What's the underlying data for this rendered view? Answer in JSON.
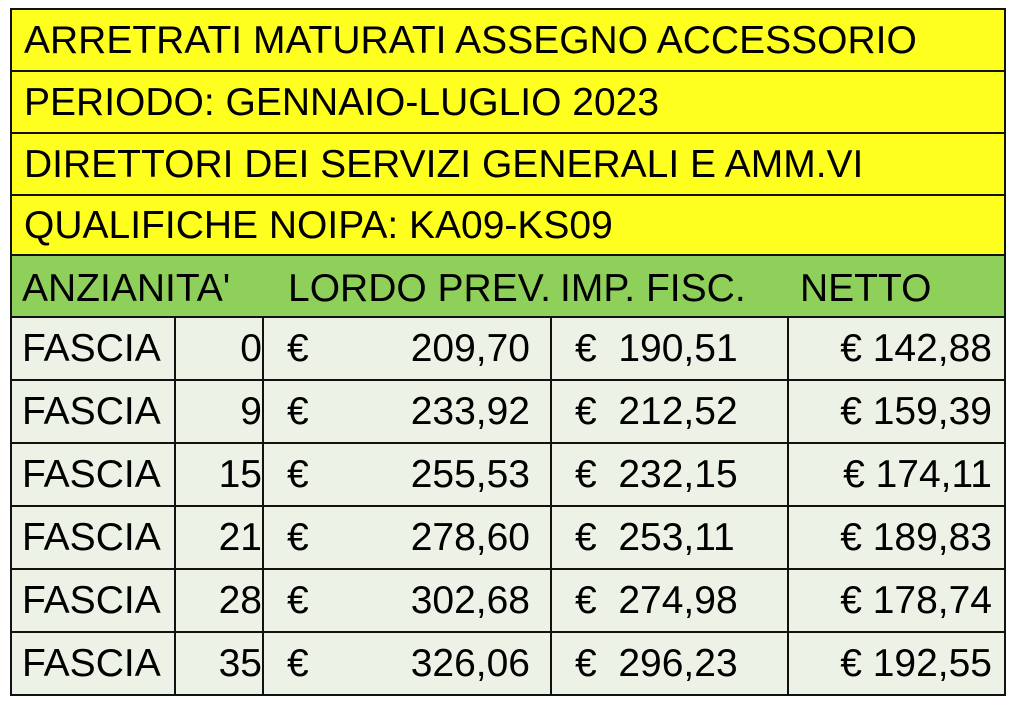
{
  "title_lines": [
    "ARRETRATI MATURATI ASSEGNO ACCESSORIO",
    "PERIODO: GENNAIO-LUGLIO 2023",
    "DIRETTORI DEI SERVIZI GENERALI E AMM.VI",
    "QUALIFICHE NOIPA: KA09-KS09"
  ],
  "headers": {
    "anzianita": "ANZIANITA'",
    "lordo": "LORDO PREV.",
    "imp": "IMP. FISC.",
    "netto": "NETTO"
  },
  "rows": [
    {
      "label": "FASCIA",
      "anni": "0",
      "eur": "€",
      "lordo": "209,70",
      "imp": "€  190,51",
      "netto": "€ 142,88"
    },
    {
      "label": "FASCIA",
      "anni": "9",
      "eur": "€",
      "lordo": "233,92",
      "imp": "€  212,52",
      "netto": "€ 159,39"
    },
    {
      "label": "FASCIA",
      "anni": "15",
      "eur": "€",
      "lordo": "255,53",
      "imp": "€  232,15",
      "netto": "€ 174,11"
    },
    {
      "label": "FASCIA",
      "anni": "21",
      "eur": "€",
      "lordo": "278,60",
      "imp": "€  253,11",
      "netto": "€ 189,83"
    },
    {
      "label": "FASCIA",
      "anni": "28",
      "eur": "€",
      "lordo": "302,68",
      "imp": "€  274,98",
      "netto": "€ 178,74"
    },
    {
      "label": "FASCIA",
      "anni": "35",
      "eur": "€",
      "lordo": "326,06",
      "imp": "€  296,23",
      "netto": "€ 192,55"
    }
  ],
  "colors": {
    "title_bg": "#ffff1f",
    "header_bg": "#8fd05a",
    "row_bg": "#ecf3e6"
  }
}
